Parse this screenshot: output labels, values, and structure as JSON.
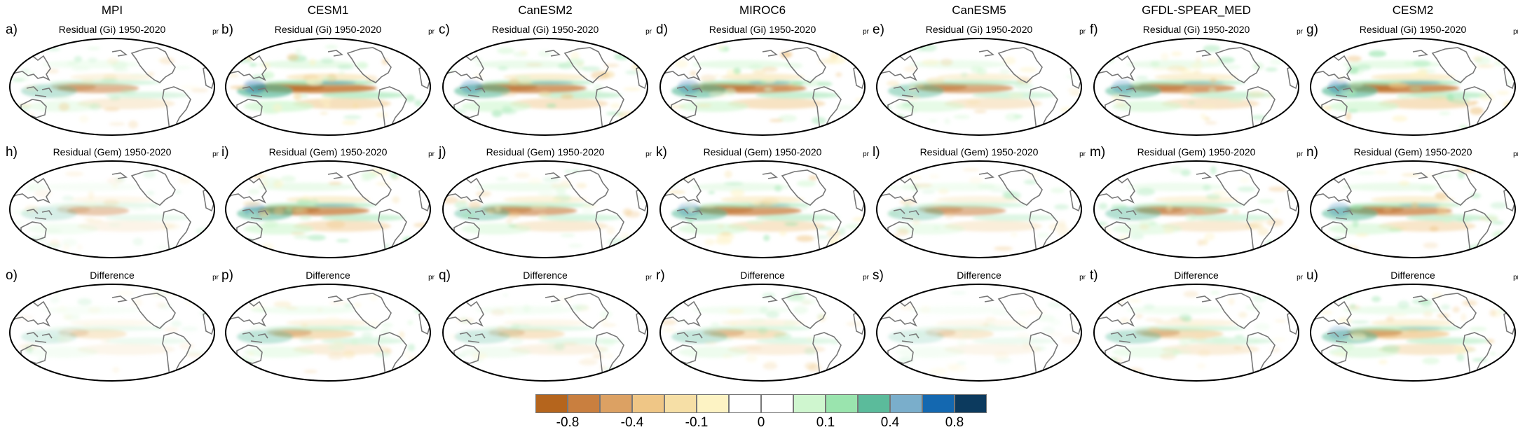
{
  "models": [
    "MPI",
    "CESM1",
    "CanESM2",
    "MIROC6",
    "CanESM5",
    "GFDL-SPEAR_MED",
    "CESM2"
  ],
  "rows": [
    {
      "title": "Residual (Gi) 1950-2020",
      "letters": [
        "a)",
        "b)",
        "c)",
        "d)",
        "e)",
        "f)",
        "g)"
      ]
    },
    {
      "title": "Residual (Gem) 1950-2020",
      "letters": [
        "h)",
        "i)",
        "j)",
        "k)",
        "l)",
        "m)",
        "n)"
      ]
    },
    {
      "title": "Difference",
      "letters": [
        "o)",
        "p)",
        "q)",
        "r)",
        "s)",
        "t)",
        "u)"
      ]
    }
  ],
  "variable": "pr",
  "colorbar": {
    "colors": [
      "#b5651d",
      "#c97f3f",
      "#dca163",
      "#efc686",
      "#f6dfa6",
      "#fdf3c4",
      "#ffffff",
      "#ffffff",
      "#cff6cf",
      "#9ae4ae",
      "#5bbb9b",
      "#7aaecb",
      "#1468b0",
      "#0c3a5e"
    ],
    "labels": [
      "-0.8",
      "-0.4",
      "-0.1",
      "0",
      "0.1",
      "0.4",
      "0.8"
    ]
  },
  "intensity": [
    [
      0.55,
      0.35,
      0.3
    ],
    [
      1.0,
      0.85,
      0.55
    ],
    [
      0.85,
      0.65,
      0.4
    ],
    [
      0.9,
      0.8,
      0.5
    ],
    [
      0.7,
      0.55,
      0.3
    ],
    [
      0.8,
      0.65,
      0.55
    ],
    [
      0.95,
      0.8,
      0.75
    ]
  ]
}
